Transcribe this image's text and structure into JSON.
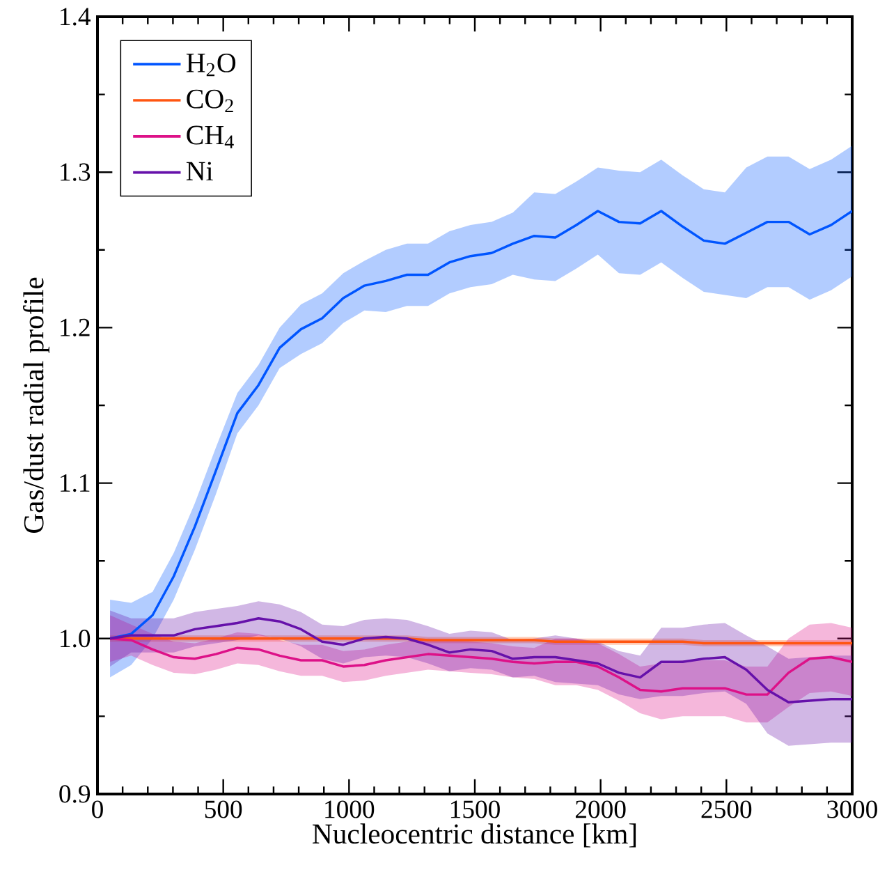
{
  "chart_data": {
    "type": "line",
    "xlabel": "Nucleocentric distance [km]",
    "ylabel": "Gas/dust radial profile",
    "x": [
      50,
      134,
      219,
      303,
      387,
      471,
      556,
      640,
      724,
      809,
      893,
      977,
      1061,
      1146,
      1230,
      1314,
      1399,
      1483,
      1567,
      1651,
      1736,
      1820,
      1904,
      1989,
      2073,
      2157,
      2241,
      2326,
      2410,
      2494,
      2579,
      2663,
      2747,
      2831,
      2916,
      3000
    ],
    "xlim": [
      0,
      3000
    ],
    "ylim": [
      0.9,
      1.4
    ],
    "xticks": [
      0,
      500,
      1000,
      1500,
      2000,
      2500,
      3000
    ],
    "yticks": [
      {
        "value": 0.9,
        "label": "0.9"
      },
      {
        "value": 1.0,
        "label": "1.0"
      },
      {
        "value": 1.1,
        "label": "1.1"
      },
      {
        "value": 1.2,
        "label": "1.2"
      },
      {
        "value": 1.3,
        "label": "1.3"
      },
      {
        "value": 1.4,
        "label": "1.4"
      }
    ],
    "legend": "top left",
    "grid": false,
    "marker": "none",
    "line_style": "solid",
    "series": [
      {
        "name": "H$_{2}$O",
        "color": "#0055ff",
        "values": [
          1.0,
          1.003,
          1.015,
          1.04,
          1.072,
          1.108,
          1.145,
          1.163,
          1.187,
          1.199,
          1.206,
          1.219,
          1.227,
          1.23,
          1.234,
          1.234,
          1.242,
          1.246,
          1.248,
          1.254,
          1.259,
          1.258,
          1.266,
          1.275,
          1.268,
          1.267,
          1.275,
          1.265,
          1.256,
          1.254,
          1.261,
          1.268,
          1.268,
          1.26,
          1.266,
          1.275
        ],
        "lower": [
          0.975,
          0.983,
          1.0,
          1.025,
          1.057,
          1.093,
          1.132,
          1.15,
          1.174,
          1.183,
          1.19,
          1.203,
          1.211,
          1.21,
          1.214,
          1.214,
          1.222,
          1.226,
          1.228,
          1.234,
          1.231,
          1.23,
          1.238,
          1.247,
          1.235,
          1.234,
          1.242,
          1.232,
          1.223,
          1.221,
          1.219,
          1.226,
          1.226,
          1.218,
          1.224,
          1.233
        ],
        "upper": [
          1.025,
          1.023,
          1.03,
          1.055,
          1.087,
          1.123,
          1.158,
          1.176,
          1.2,
          1.215,
          1.222,
          1.235,
          1.243,
          1.25,
          1.254,
          1.254,
          1.262,
          1.266,
          1.268,
          1.274,
          1.287,
          1.286,
          1.294,
          1.303,
          1.301,
          1.3,
          1.308,
          1.298,
          1.289,
          1.287,
          1.303,
          1.31,
          1.31,
          1.302,
          1.308,
          1.317
        ]
      },
      {
        "name": "CO$_{2}$",
        "color": "#ff5511",
        "values": [
          1.0,
          1.0,
          1.0,
          1.0,
          1.0,
          1.0,
          1.0,
          1.0,
          1.0,
          1.0,
          1.0,
          1.0,
          1.0,
          1.0,
          1.0,
          0.999,
          0.999,
          0.999,
          0.999,
          0.999,
          0.999,
          0.998,
          0.998,
          0.998,
          0.998,
          0.998,
          0.998,
          0.998,
          0.997,
          0.997,
          0.997,
          0.997,
          0.997,
          0.997,
          0.997,
          0.997
        ],
        "lower": [
          0.998,
          0.998,
          0.998,
          0.998,
          0.998,
          0.998,
          0.998,
          0.998,
          0.998,
          0.998,
          0.998,
          0.998,
          0.998,
          0.998,
          0.998,
          0.997,
          0.997,
          0.997,
          0.997,
          0.997,
          0.997,
          0.996,
          0.996,
          0.996,
          0.996,
          0.996,
          0.996,
          0.996,
          0.995,
          0.995,
          0.995,
          0.995,
          0.995,
          0.995,
          0.995,
          0.995
        ],
        "upper": [
          1.002,
          1.002,
          1.002,
          1.002,
          1.002,
          1.002,
          1.002,
          1.002,
          1.002,
          1.002,
          1.002,
          1.002,
          1.002,
          1.002,
          1.002,
          1.001,
          1.001,
          1.001,
          1.001,
          1.001,
          1.001,
          1.0,
          1.0,
          1.0,
          1.0,
          1.0,
          1.0,
          1.0,
          0.999,
          0.999,
          0.999,
          0.999,
          0.999,
          0.999,
          0.999,
          0.999
        ]
      },
      {
        "name": "CH$_{4}$",
        "color": "#dd1188",
        "values": [
          1.0,
          0.999,
          0.993,
          0.988,
          0.987,
          0.99,
          0.994,
          0.993,
          0.989,
          0.986,
          0.986,
          0.982,
          0.983,
          0.986,
          0.988,
          0.99,
          0.989,
          0.988,
          0.987,
          0.985,
          0.984,
          0.985,
          0.985,
          0.982,
          0.975,
          0.967,
          0.966,
          0.968,
          0.968,
          0.968,
          0.964,
          0.964,
          0.978,
          0.987,
          0.988,
          0.985
        ],
        "lower": [
          0.985,
          0.989,
          0.983,
          0.978,
          0.977,
          0.98,
          0.984,
          0.983,
          0.979,
          0.976,
          0.976,
          0.972,
          0.973,
          0.976,
          0.978,
          0.98,
          0.979,
          0.978,
          0.977,
          0.975,
          0.974,
          0.97,
          0.97,
          0.967,
          0.96,
          0.952,
          0.948,
          0.95,
          0.95,
          0.95,
          0.946,
          0.946,
          0.956,
          0.965,
          0.966,
          0.963
        ],
        "upper": [
          1.015,
          1.009,
          1.003,
          0.998,
          0.997,
          1.0,
          1.004,
          1.003,
          0.999,
          0.996,
          0.996,
          0.992,
          0.993,
          0.996,
          0.998,
          1.0,
          0.999,
          0.998,
          0.997,
          0.995,
          0.994,
          1.0,
          1.0,
          0.997,
          0.99,
          0.982,
          0.984,
          0.986,
          0.986,
          0.986,
          0.982,
          0.982,
          1.0,
          1.009,
          1.01,
          1.007
        ]
      },
      {
        "name": "Ni",
        "color": "#6611aa",
        "values": [
          1.0,
          1.002,
          1.002,
          1.002,
          1.006,
          1.008,
          1.01,
          1.013,
          1.011,
          1.006,
          0.998,
          0.996,
          1.0,
          1.001,
          1.0,
          0.996,
          0.991,
          0.993,
          0.992,
          0.987,
          0.988,
          0.988,
          0.986,
          0.984,
          0.978,
          0.975,
          0.985,
          0.985,
          0.987,
          0.988,
          0.98,
          0.967,
          0.959,
          0.96,
          0.961,
          0.961
        ],
        "lower": [
          0.982,
          0.991,
          0.991,
          0.991,
          0.995,
          0.997,
          0.999,
          1.002,
          1.0,
          0.995,
          0.987,
          0.984,
          0.988,
          0.989,
          0.988,
          0.984,
          0.979,
          0.981,
          0.98,
          0.975,
          0.976,
          0.972,
          0.971,
          0.97,
          0.964,
          0.961,
          0.963,
          0.963,
          0.965,
          0.966,
          0.958,
          0.939,
          0.931,
          0.932,
          0.933,
          0.933
        ],
        "upper": [
          1.018,
          1.013,
          1.013,
          1.013,
          1.017,
          1.019,
          1.021,
          1.024,
          1.022,
          1.017,
          1.009,
          1.008,
          1.012,
          1.013,
          1.012,
          1.008,
          1.003,
          1.005,
          1.004,
          0.999,
          1.0,
          1.002,
          1.0,
          0.998,
          0.992,
          0.989,
          1.007,
          1.007,
          1.009,
          1.01,
          1.002,
          0.995,
          0.987,
          0.988,
          0.989,
          0.989
        ]
      }
    ]
  }
}
